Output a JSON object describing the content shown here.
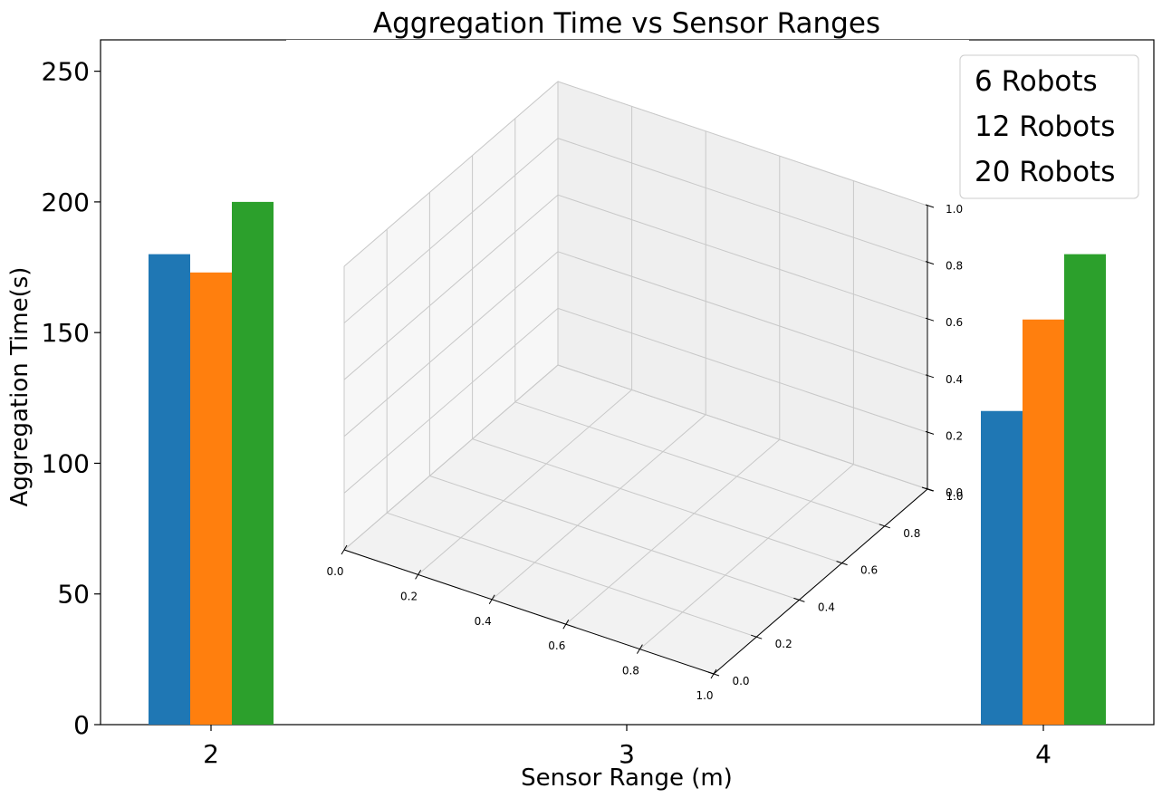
{
  "chart_data": {
    "type": "bar",
    "title": "Aggregation Time vs Sensor Ranges",
    "xlabel": "Sensor Range (m)",
    "ylabel": "Aggregation Time(s)",
    "categories": [
      "2",
      "3",
      "4"
    ],
    "ylim": [
      0,
      262
    ],
    "yticks": [
      0,
      50,
      100,
      150,
      200,
      250
    ],
    "legend_placement": "top-right",
    "series": [
      {
        "name": "6 Robots",
        "color": "#1f77b4",
        "values": [
          180,
          null,
          120
        ]
      },
      {
        "name": "12 Robots",
        "color": "#ff7f0e",
        "values": [
          173,
          null,
          155
        ]
      },
      {
        "name": "20 Robots",
        "color": "#2ca02c",
        "values": [
          200,
          null,
          180
        ]
      }
    ],
    "inset_3d_axes": {
      "x_ticks": [
        "0.0",
        "0.2",
        "0.4",
        "0.6",
        "0.8",
        "1.0"
      ],
      "y_ticks": [
        "0.0",
        "0.2",
        "0.4",
        "0.6",
        "0.8",
        "1.0"
      ],
      "z_ticks": [
        "0.0",
        "0.2",
        "0.4",
        "0.6",
        "0.8",
        "1.0"
      ]
    }
  }
}
